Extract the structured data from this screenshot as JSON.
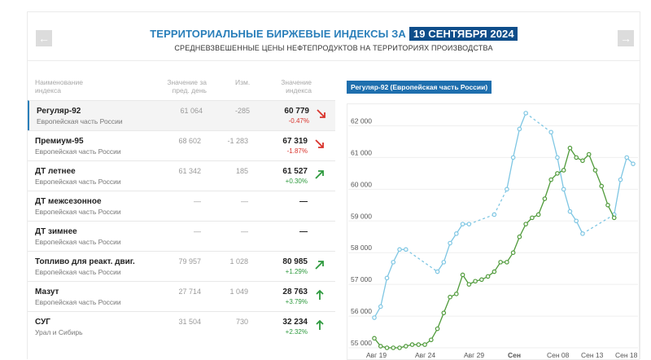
{
  "header": {
    "title": "ТЕРРИТОРИАЛЬНЫЕ БИРЖЕВЫЕ ИНДЕКСЫ ЗА",
    "date": "19 СЕНТЯБРЯ 2024",
    "subtitle": "СРЕДНЕВЗВЕШЕННЫЕ ЦЕНЫ НЕФТЕПРОДУКТОВ НА ТЕРРИТОРИЯХ ПРОИЗВОДСТВА",
    "prev_icon": "arrow-left-icon",
    "next_icon": "arrow-right-icon"
  },
  "colors": {
    "accent": "#2a7fba",
    "badge": "#0e4d8a",
    "down": "#d9332b",
    "up": "#2e9a3e",
    "line_blue": "#7ec6e3",
    "line_green": "#4f9a3a"
  },
  "table": {
    "columns": {
      "name_l1": "Наименование",
      "name_l2": "индекса",
      "prev_l1": "Значение за",
      "prev_l2": "пред. день",
      "change": "Изм.",
      "value_l1": "Значение",
      "value_l2": "индекса"
    },
    "rows": [
      {
        "name": "Регуляр-92",
        "region": "Европейская часть России",
        "prev": "61 064",
        "change": "-285",
        "value": "60 779",
        "pct": "-0.47%",
        "dir": "down",
        "active": true
      },
      {
        "name": "Премиум-95",
        "region": "Европейская часть России",
        "prev": "68 602",
        "change": "-1 283",
        "value": "67 319",
        "pct": "-1.87%",
        "dir": "down"
      },
      {
        "name": "ДТ летнее",
        "region": "Европейская часть России",
        "prev": "61 342",
        "change": "185",
        "value": "61 527",
        "pct": "+0.30%",
        "dir": "up"
      },
      {
        "name": "ДТ межсезонное",
        "region": "Европейская часть России",
        "prev": "—",
        "change": "—",
        "value": "—",
        "pct": "",
        "dir": "none"
      },
      {
        "name": "ДТ зимнее",
        "region": "Европейская часть России",
        "prev": "—",
        "change": "—",
        "value": "—",
        "pct": "",
        "dir": "none"
      },
      {
        "name": "Топливо для реакт. двиг.",
        "region": "Европейская часть России",
        "prev": "79 957",
        "change": "1 028",
        "value": "80 985",
        "pct": "+1.29%",
        "dir": "up"
      },
      {
        "name": "Мазут",
        "region": "Европейская часть России",
        "prev": "27 714",
        "change": "1 049",
        "value": "28 763",
        "pct": "+3.79%",
        "dir": "up-straight"
      },
      {
        "name": "СУГ",
        "region": "Урал и Сибирь",
        "prev": "31 504",
        "change": "730",
        "value": "32 234",
        "pct": "+2.32%",
        "dir": "up-straight"
      }
    ]
  },
  "chart_data": {
    "type": "line",
    "title": "Регуляр-92 (Европейская часть России)",
    "y_ticks": [
      "62 000",
      "61 000",
      "60 000",
      "59 000",
      "58 000",
      "57 000",
      "56 000",
      "55 000"
    ],
    "ylim": [
      55000,
      62500
    ],
    "x_ticks": [
      "Авг 19",
      "Авг 24",
      "Авг 29",
      "Сен",
      "Сен 08",
      "Сен 13",
      "Сен 18"
    ],
    "grid": "horizontal",
    "series": [
      {
        "style": "blue-light",
        "points": [
          [
            0,
            55950
          ],
          [
            1,
            56300
          ],
          [
            2,
            57200
          ],
          [
            3,
            57700
          ],
          [
            4,
            58100
          ],
          [
            5,
            58100
          ],
          [
            10,
            57400
          ],
          [
            11,
            57700
          ],
          [
            12,
            58300
          ],
          [
            13,
            58600
          ],
          [
            14,
            58900
          ],
          [
            15,
            58900
          ],
          [
            19,
            59200
          ],
          [
            21,
            60000
          ],
          [
            22,
            61000
          ],
          [
            23,
            61900
          ],
          [
            24,
            62400
          ],
          [
            28,
            61800
          ],
          [
            29,
            61000
          ],
          [
            30,
            60000
          ],
          [
            31,
            59300
          ],
          [
            32,
            59000
          ],
          [
            33,
            58600
          ],
          [
            38,
            59200
          ],
          [
            39,
            60300
          ],
          [
            40,
            61000
          ],
          [
            41,
            60800
          ]
        ]
      },
      {
        "style": "green-dark",
        "points": [
          [
            0,
            55300
          ],
          [
            1,
            55050
          ],
          [
            2,
            55000
          ],
          [
            3,
            55000
          ],
          [
            4,
            55000
          ],
          [
            5,
            55050
          ],
          [
            6,
            55100
          ],
          [
            7,
            55100
          ],
          [
            8,
            55100
          ],
          [
            9,
            55250
          ],
          [
            10,
            55600
          ],
          [
            11,
            56100
          ],
          [
            12,
            56600
          ],
          [
            13,
            56700
          ],
          [
            14,
            57300
          ],
          [
            15,
            57000
          ],
          [
            16,
            57100
          ],
          [
            17,
            57150
          ],
          [
            18,
            57250
          ],
          [
            19,
            57400
          ],
          [
            20,
            57700
          ],
          [
            21,
            57700
          ],
          [
            22,
            58000
          ],
          [
            23,
            58500
          ],
          [
            24,
            58900
          ],
          [
            25,
            59100
          ],
          [
            26,
            59200
          ],
          [
            27,
            59700
          ],
          [
            28,
            60300
          ],
          [
            29,
            60500
          ],
          [
            30,
            60600
          ],
          [
            31,
            61300
          ],
          [
            32,
            61000
          ],
          [
            33,
            60900
          ],
          [
            34,
            61100
          ],
          [
            35,
            60600
          ],
          [
            36,
            60100
          ],
          [
            37,
            59500
          ],
          [
            38,
            59100
          ]
        ]
      }
    ]
  }
}
